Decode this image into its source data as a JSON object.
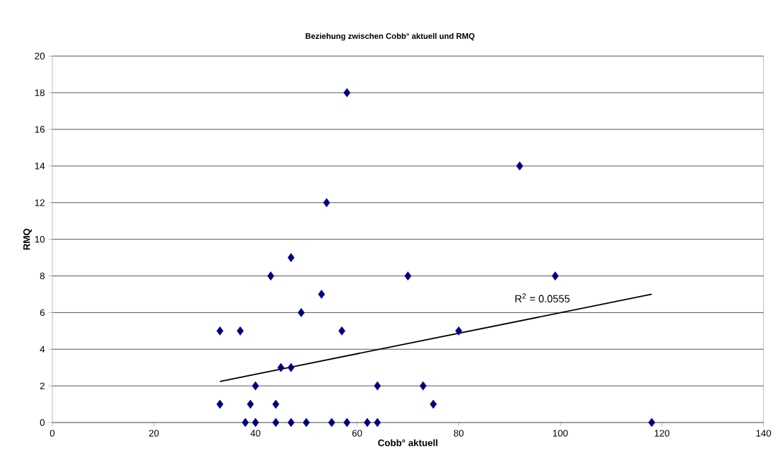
{
  "chart_data": {
    "type": "scatter",
    "title": "Beziehung zwischen Cobb° aktuell und RMQ",
    "xlabel": "Cobb° aktuell",
    "ylabel": "RMQ",
    "series": [
      {
        "type": "scatter",
        "color": "#000080",
        "marker": "diamond",
        "x": [
          33,
          33,
          37,
          38,
          39,
          40,
          40,
          43,
          44,
          44,
          45,
          47,
          47,
          47,
          49,
          50,
          53,
          54,
          55,
          57,
          58,
          58,
          62,
          64,
          64,
          70,
          73,
          75,
          80,
          92,
          99,
          118
        ],
        "values": [
          5,
          1,
          5,
          0,
          1,
          0,
          2,
          8,
          1,
          0,
          3,
          9,
          3,
          0,
          6,
          0,
          7,
          12,
          0,
          5,
          18,
          0,
          0,
          2,
          0,
          8,
          2,
          1,
          5,
          14,
          8,
          0
        ]
      },
      {
        "type": "line",
        "color": "#000000",
        "marker": "none",
        "x": [
          33,
          118
        ],
        "values": [
          2.24,
          7.0
        ]
      }
    ],
    "annotations": [
      "R$^{2}$ = 0.0555"
    ],
    "xlim": [
      0,
      140
    ],
    "xticks": [
      0,
      20,
      40,
      60,
      80,
      100,
      120,
      140
    ],
    "ylim": [
      0,
      20
    ],
    "yticks": [
      0,
      2,
      4,
      6,
      8,
      10,
      12,
      14,
      16,
      18,
      20
    ],
    "grid": "y"
  }
}
